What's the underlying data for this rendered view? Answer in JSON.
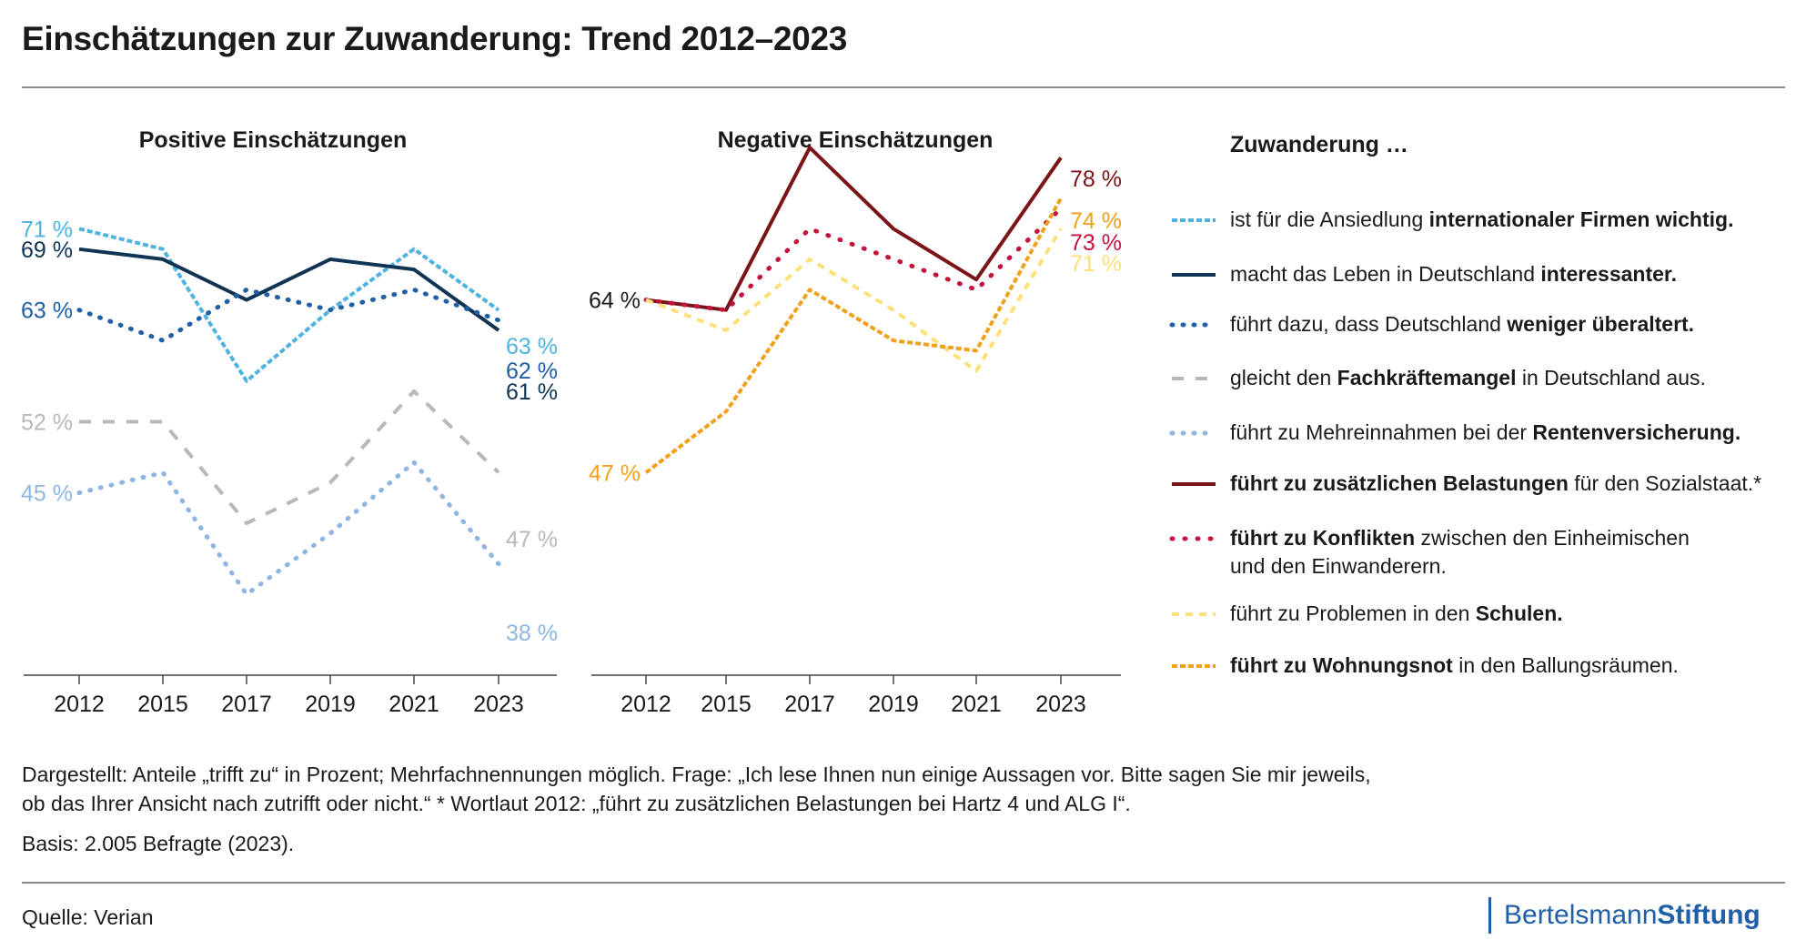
{
  "title": "Einschätzungen zur Zuwanderung: Trend 2012–2023",
  "legend": {
    "title": "Zuwanderung …",
    "items": [
      {
        "key": "firmen",
        "parts": [
          {
            "t": "ist für die Ansiedlung ",
            "b": false
          },
          {
            "t": "internationaler Firmen wichtig.",
            "b": true
          }
        ]
      },
      {
        "key": "interessant",
        "parts": [
          {
            "t": "macht das Leben in Deutschland ",
            "b": false
          },
          {
            "t": "interessanter.",
            "b": true
          }
        ]
      },
      {
        "key": "ueberaltert",
        "parts": [
          {
            "t": "führt dazu, dass Deutschland ",
            "b": false
          },
          {
            "t": "weniger überaltert.",
            "b": true
          }
        ]
      },
      {
        "key": "fachkraefte",
        "parts": [
          {
            "t": "gleicht den ",
            "b": false
          },
          {
            "t": "Fachkräftemangel",
            "b": true
          },
          {
            "t": " in Deutschland aus.",
            "b": false
          }
        ]
      },
      {
        "key": "rente",
        "parts": [
          {
            "t": "führt zu Mehreinnahmen bei der ",
            "b": false
          },
          {
            "t": "Rentenversicherung.",
            "b": true
          }
        ]
      },
      {
        "key": "belastungen",
        "parts": [
          {
            "t": "führt zu zusätzlichen Belastungen",
            "b": true
          },
          {
            "t": " für den Sozialstaat.*",
            "b": false
          }
        ]
      },
      {
        "key": "konflikte",
        "parts": [
          {
            "t": "führt zu Konflikten",
            "b": true
          },
          {
            "t": " zwischen den Einheimischen",
            "b": false
          },
          {
            "t": "\nund den Einwanderern.",
            "b": false
          }
        ]
      },
      {
        "key": "schulen",
        "parts": [
          {
            "t": "führt zu Problemen in den ",
            "b": false
          },
          {
            "t": "Schulen.",
            "b": true
          }
        ]
      },
      {
        "key": "wohnung",
        "parts": [
          {
            "t": "führt zu Wohnungsnot",
            "b": true
          },
          {
            "t": " in den Ballungsräumen.",
            "b": false
          }
        ]
      }
    ]
  },
  "notes": {
    "line1": "Dargestellt: Anteile „trifft zu“ in Prozent; Mehrfachnennungen möglich. Frage: „Ich lese Ihnen nun einige Aussagen vor. Bitte sagen Sie mir jeweils,",
    "line2": "ob das Ihrer Ansicht nach zutrifft oder nicht.“  * Wortlaut 2012: „führt zu zusätzlichen Belastungen bei Hartz 4 und ALG I“.",
    "basis": "Basis: 2.005 Befragte (2023)."
  },
  "source": "Quelle: Verian",
  "brand": {
    "part1": "Bertelsmann",
    "part2": "Stiftung",
    "color": "#1f5fa6"
  },
  "styles": {
    "firmen": {
      "color": "#4fb3e0",
      "dash": "6 3",
      "dot": false
    },
    "interessant": {
      "color": "#0f3454",
      "dash": "",
      "dot": false
    },
    "ueberaltert": {
      "color": "#1f5fa6",
      "dash": "1 11",
      "dot": true
    },
    "fachkraefte": {
      "color": "#b8b8b8",
      "dash": "13 13",
      "dot": false
    },
    "rente": {
      "color": "#8fb6e0",
      "dash": "1 11",
      "dot": true
    },
    "belastungen": {
      "color": "#7b1418",
      "dash": "",
      "dot": false
    },
    "konflikte": {
      "color": "#c4143c",
      "dash": "1 13",
      "dot": true
    },
    "schulen": {
      "color": "#fde07a",
      "dash": "8 7",
      "dot": false
    },
    "wohnung": {
      "color": "#f0a11c",
      "dash": "6 3",
      "dot": false
    }
  },
  "chart_data": [
    {
      "type": "line",
      "title": "Positive Einschätzungen",
      "x": [
        "2012",
        "2015",
        "2017",
        "2019",
        "2021",
        "2023"
      ],
      "ylim": [
        30,
        80
      ],
      "grid": false,
      "series": [
        {
          "key": "firmen",
          "values": [
            71,
            69,
            56,
            63,
            69,
            63
          ]
        },
        {
          "key": "interessant",
          "values": [
            69,
            68,
            64,
            68,
            67,
            61
          ]
        },
        {
          "key": "ueberaltert",
          "values": [
            63,
            60,
            65,
            63,
            65,
            62
          ]
        },
        {
          "key": "fachkraefte",
          "values": [
            52,
            52,
            42,
            46,
            55,
            47
          ]
        },
        {
          "key": "rente",
          "values": [
            45,
            47,
            35,
            41,
            48,
            38
          ]
        }
      ],
      "labels_2012": [
        {
          "key": "firmen",
          "text": "71 %"
        },
        {
          "key": "interessant",
          "text": "69 %"
        },
        {
          "key": "ueberaltert",
          "text": "63 %"
        },
        {
          "key": "fachkraefte",
          "text": "52 %"
        },
        {
          "key": "rente",
          "text": "45 %"
        }
      ],
      "labels_2023": [
        {
          "key": "firmen",
          "text": "63 %"
        },
        {
          "key": "ueberaltert",
          "text": "62 %"
        },
        {
          "key": "interessant",
          "text": "61 %"
        },
        {
          "key": "fachkraefte",
          "text": "47 %"
        },
        {
          "key": "rente",
          "text": "38 %"
        }
      ]
    },
    {
      "type": "line",
      "title": "Negative Einschätzungen",
      "x": [
        "2012",
        "2015",
        "2017",
        "2019",
        "2021",
        "2023"
      ],
      "ylim": [
        30,
        80
      ],
      "grid": false,
      "series": [
        {
          "key": "belastungen",
          "values": [
            64,
            63,
            79,
            71,
            66,
            78
          ]
        },
        {
          "key": "konflikte",
          "values": [
            64,
            63,
            71,
            68,
            65,
            73
          ]
        },
        {
          "key": "schulen",
          "values": [
            64,
            61,
            68,
            63,
            57,
            71
          ]
        },
        {
          "key": "wohnung",
          "values": [
            47,
            53,
            65,
            60,
            59,
            74
          ]
        }
      ],
      "labels_2012": [
        {
          "key": "belastungen",
          "text": "64 %",
          "color": "#1a1a1a"
        },
        {
          "key": "wohnung",
          "text": "47 %"
        }
      ],
      "labels_2023": [
        {
          "key": "belastungen",
          "text": "78 %"
        },
        {
          "key": "wohnung",
          "text": "74 %"
        },
        {
          "key": "konflikte",
          "text": "73 %"
        },
        {
          "key": "schulen",
          "text": "71 %"
        }
      ]
    }
  ]
}
